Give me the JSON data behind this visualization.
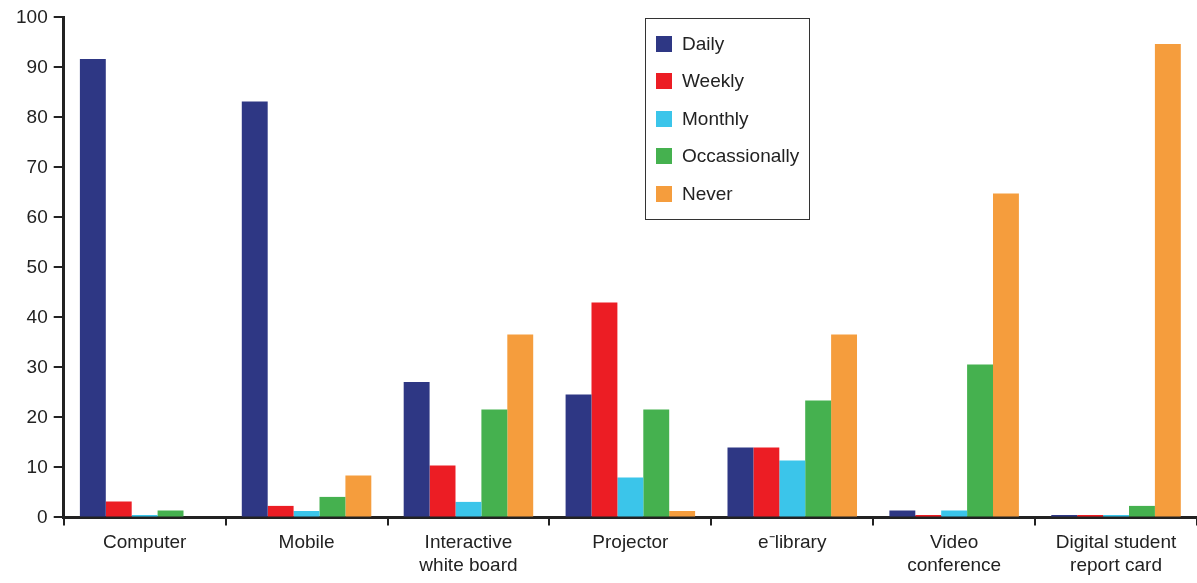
{
  "chart_data": {
    "type": "bar",
    "categories": [
      "Computer",
      "Mobile",
      "Interactive white board",
      "Projector",
      "e⁻library",
      "Video conference",
      "Digital student report card"
    ],
    "series": [
      {
        "name": "Daily",
        "color": "#2e3784",
        "values": [
          91.7,
          83.2,
          27.1,
          24.6,
          14.0,
          1.4,
          0.5
        ]
      },
      {
        "name": "Weekly",
        "color": "#ec1d24",
        "values": [
          3.2,
          2.3,
          10.4,
          43.0,
          14.0,
          0.5,
          0.5
        ]
      },
      {
        "name": "Monthly",
        "color": "#3bc5ea",
        "values": [
          0.5,
          1.3,
          3.1,
          8.0,
          11.4,
          1.4,
          0.5
        ]
      },
      {
        "name": "Occassionally",
        "color": "#45b14f",
        "values": [
          1.4,
          4.1,
          21.6,
          21.6,
          23.4,
          30.6,
          2.3
        ]
      },
      {
        "name": "Never",
        "color": "#f59d3d",
        "values": [
          0,
          8.4,
          36.6,
          1.3,
          36.6,
          64.8,
          94.7
        ]
      }
    ],
    "ylim": [
      0,
      100
    ],
    "yticks": [
      0,
      10,
      20,
      30,
      40,
      50,
      60,
      70,
      80,
      90,
      100
    ],
    "grid": false,
    "legend": "top"
  }
}
